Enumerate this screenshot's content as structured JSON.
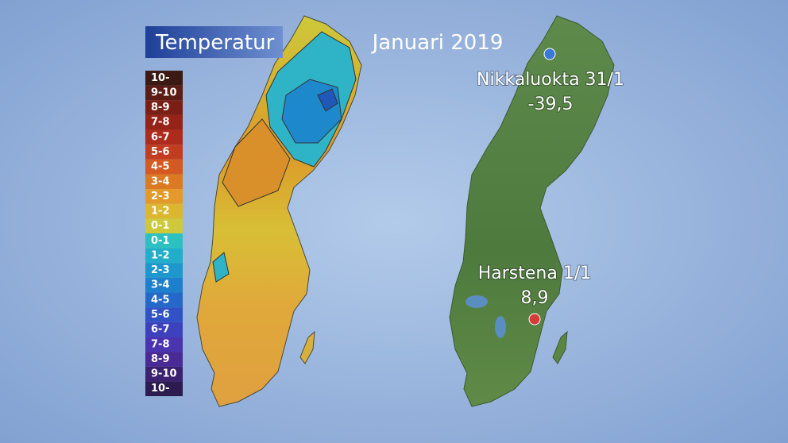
{
  "header": {
    "title": "Temperatur",
    "period": "Januari 2019"
  },
  "legend": {
    "items": [
      {
        "label": "10-",
        "color": "#3a1a12"
      },
      {
        "label": "9-10",
        "color": "#5a1c14"
      },
      {
        "label": "8-9",
        "color": "#7a1f16"
      },
      {
        "label": "7-8",
        "color": "#952318"
      },
      {
        "label": "6-7",
        "color": "#ad2a1c"
      },
      {
        "label": "5-6",
        "color": "#c23c20"
      },
      {
        "label": "4-5",
        "color": "#d45a22"
      },
      {
        "label": "3-4",
        "color": "#dc7a24"
      },
      {
        "label": "2-3",
        "color": "#e39a28"
      },
      {
        "label": "1-2",
        "color": "#dcb62e"
      },
      {
        "label": "0-1",
        "color": "#cdc93a"
      },
      {
        "label": "0-1",
        "color": "#2ec0c0"
      },
      {
        "label": "1-2",
        "color": "#22aec8"
      },
      {
        "label": "2-3",
        "color": "#1e98cc"
      },
      {
        "label": "3-4",
        "color": "#1e80cc"
      },
      {
        "label": "4-5",
        "color": "#2468c8"
      },
      {
        "label": "5-6",
        "color": "#3052c4"
      },
      {
        "label": "6-7",
        "color": "#3d42bc"
      },
      {
        "label": "7-8",
        "color": "#4a34b0"
      },
      {
        "label": "8-9",
        "color": "#4a2a94"
      },
      {
        "label": "9-10",
        "color": "#3c2170"
      },
      {
        "label": "10-",
        "color": "#2c1a50"
      }
    ]
  },
  "stations": [
    {
      "name": "Nikkaluokta 31/1",
      "value": "-39,5",
      "color": "#3a78d8"
    },
    {
      "name": "Harstena 1/1",
      "value": "8,9",
      "color": "#d83a3a"
    }
  ]
}
